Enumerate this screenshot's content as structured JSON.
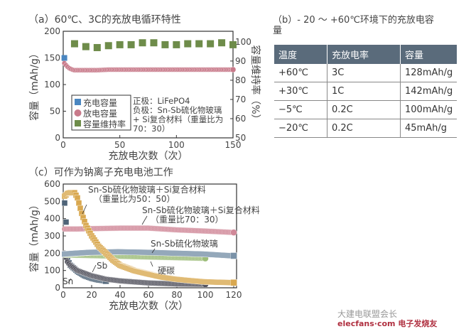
{
  "chart_data": [
    {
      "type": "scatter",
      "title": "（a）60℃、3C的充放电循环特性",
      "xlabel": "充放电次数（次）",
      "ylabel": "容量（mAh/g）",
      "ylabel_right": "容量维持率（%）",
      "xlim": [
        0,
        150
      ],
      "ylim": [
        0,
        200
      ],
      "ylim_right": [
        50,
        105.5
      ],
      "xticks": [
        "0",
        "50",
        "100",
        "150"
      ],
      "yticks": [
        "0",
        "50",
        "100",
        "150",
        "200"
      ],
      "yticks_right": [
        "50",
        "60",
        "70",
        "80",
        "90",
        "100"
      ],
      "legend_position": "bottom-left",
      "annotation": [
        "正极：LiFePO4",
        "负极：Sn-Sb硫化物玻璃",
        "+ Si复合材料（重量比为",
        "70：30）"
      ],
      "series": [
        {
          "name": "充电容量",
          "marker": "square",
          "color": "#4a86c0",
          "axis": "left",
          "x": [
            1
          ],
          "y": [
            150
          ]
        },
        {
          "name": "放电容量",
          "marker": "circle",
          "color": "#c87a8a",
          "axis": "left",
          "x": [
            1,
            3,
            5,
            8,
            10,
            20,
            30,
            40,
            60,
            80,
            100,
            120,
            140,
            150
          ],
          "y": [
            140,
            135,
            131,
            128,
            127,
            127,
            127,
            128,
            128,
            128,
            128,
            128,
            128,
            128
          ]
        },
        {
          "name": "容量维持率",
          "marker": "square",
          "color": "#6e8c4a",
          "axis": "right",
          "x": [
            10,
            20,
            30,
            40,
            50,
            60,
            70,
            80,
            90,
            100,
            110,
            120,
            130,
            140,
            150
          ],
          "y": [
            99,
            97.5,
            97,
            98,
            98.5,
            98.5,
            99.5,
            99.5,
            98.5,
            98.5,
            99,
            99,
            99,
            99.5,
            98.5
          ]
        }
      ]
    },
    {
      "type": "scatter",
      "title": "（c）可作为钠离子充电电池工作",
      "xlabel": "充放电次数（次）",
      "ylabel": "容量（mAh/g）",
      "xlim": [
        0,
        120
      ],
      "ylim": [
        0,
        600
      ],
      "xticks": [
        "0",
        "20",
        "40",
        "60",
        "80",
        "100",
        "120"
      ],
      "yticks": [
        "0",
        "100",
        "200",
        "300",
        "400",
        "500",
        "600"
      ],
      "series": [
        {
          "name": "Sn-Sb硫化物玻璃＋Si复合材料（重量比为50：50）",
          "label": [
            "Sn-Sb硫化物玻璃＋Si复合材料",
            "（重量比为50：50）"
          ],
          "marker": "square",
          "color": "#d9a850",
          "x": [
            1,
            3,
            5,
            8,
            10,
            13,
            16,
            20,
            25,
            30,
            35,
            40,
            50,
            60,
            70,
            80,
            90,
            100,
            110,
            120
          ],
          "y": [
            530,
            545,
            550,
            550,
            520,
            430,
            360,
            300,
            240,
            200,
            160,
            130,
            100,
            80,
            62,
            50,
            42,
            35,
            32,
            30
          ]
        },
        {
          "name": "Sn-Sb硫化物玻璃＋Si复合材料（重量比70：30）",
          "label": [
            "Sn-Sb硫化物玻璃＋Si复合材料",
            "（重量比70：30）"
          ],
          "marker": "circle",
          "color": "#d08898",
          "x": [
            1,
            10,
            20,
            40,
            60,
            80,
            100,
            120
          ],
          "y": [
            340,
            340,
            342,
            345,
            345,
            335,
            328,
            320
          ]
        },
        {
          "name": "Sn-Sb硫化物玻璃",
          "label": [
            "Sn-Sb硫化物玻璃"
          ],
          "marker": "square",
          "color": "#7a92a8",
          "x": [
            1,
            10,
            20,
            40,
            60,
            80,
            100,
            110,
            120
          ],
          "y": [
            195,
            200,
            205,
            208,
            205,
            200,
            195,
            190,
            185
          ]
        },
        {
          "name": "硬碳",
          "label": [
            "硬碳"
          ],
          "marker": "circle",
          "color": "#9cbc78",
          "x": [
            1,
            10,
            20,
            40,
            60,
            80,
            100
          ],
          "y": [
            190,
            188,
            186,
            182,
            178,
            174,
            170
          ]
        },
        {
          "name": "Sb",
          "label": [
            "Sb"
          ],
          "marker": "circle",
          "color": "#555560",
          "x": [
            1,
            3,
            5,
            10,
            20,
            30,
            40,
            60,
            80,
            100
          ],
          "y": [
            200,
            150,
            130,
            100,
            70,
            50,
            40,
            28,
            22,
            20
          ]
        },
        {
          "name": "Sn",
          "label": [
            "Sn"
          ],
          "marker": "square",
          "color": "#4f6478",
          "x": [
            1,
            2,
            3,
            5,
            8,
            10,
            15,
            20,
            25,
            30
          ],
          "y": [
            490,
            380,
            160,
            130,
            110,
            95,
            70,
            55,
            45,
            40
          ]
        }
      ]
    }
  ],
  "table": {
    "title": "（b）- 20 ～ +60℃环境下的充放电容量",
    "headers": [
      "温度",
      "充放电率",
      "容量"
    ],
    "rows": [
      [
        "+60℃",
        "3C",
        "128mAh/g"
      ],
      [
        "+30℃",
        "1C",
        "142mAh/g"
      ],
      [
        "−5℃",
        "0.2C",
        "100mAh/g"
      ],
      [
        "−20℃",
        "0.2C",
        "45mAh/g"
      ]
    ]
  },
  "watermark": {
    "line1": "大建电联盟会长",
    "line2": "elecfans·com 电子发烧友"
  }
}
